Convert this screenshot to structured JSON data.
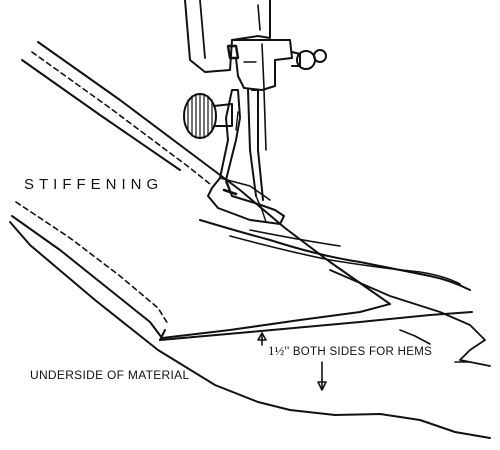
{
  "labels": {
    "stiffening": "STIFFENING",
    "underside": "UNDERSIDE OF MATERIAL",
    "hem_measure": "1½\"",
    "hem_text": "BOTH SIDES FOR HEMS"
  },
  "colors": {
    "ink": "#111111",
    "paper": "#ffffff"
  },
  "icons": [
    "sewing-machine-needle-icon",
    "presser-foot-icon",
    "thread-tension-knob-icon",
    "dimension-arrow-icon"
  ]
}
